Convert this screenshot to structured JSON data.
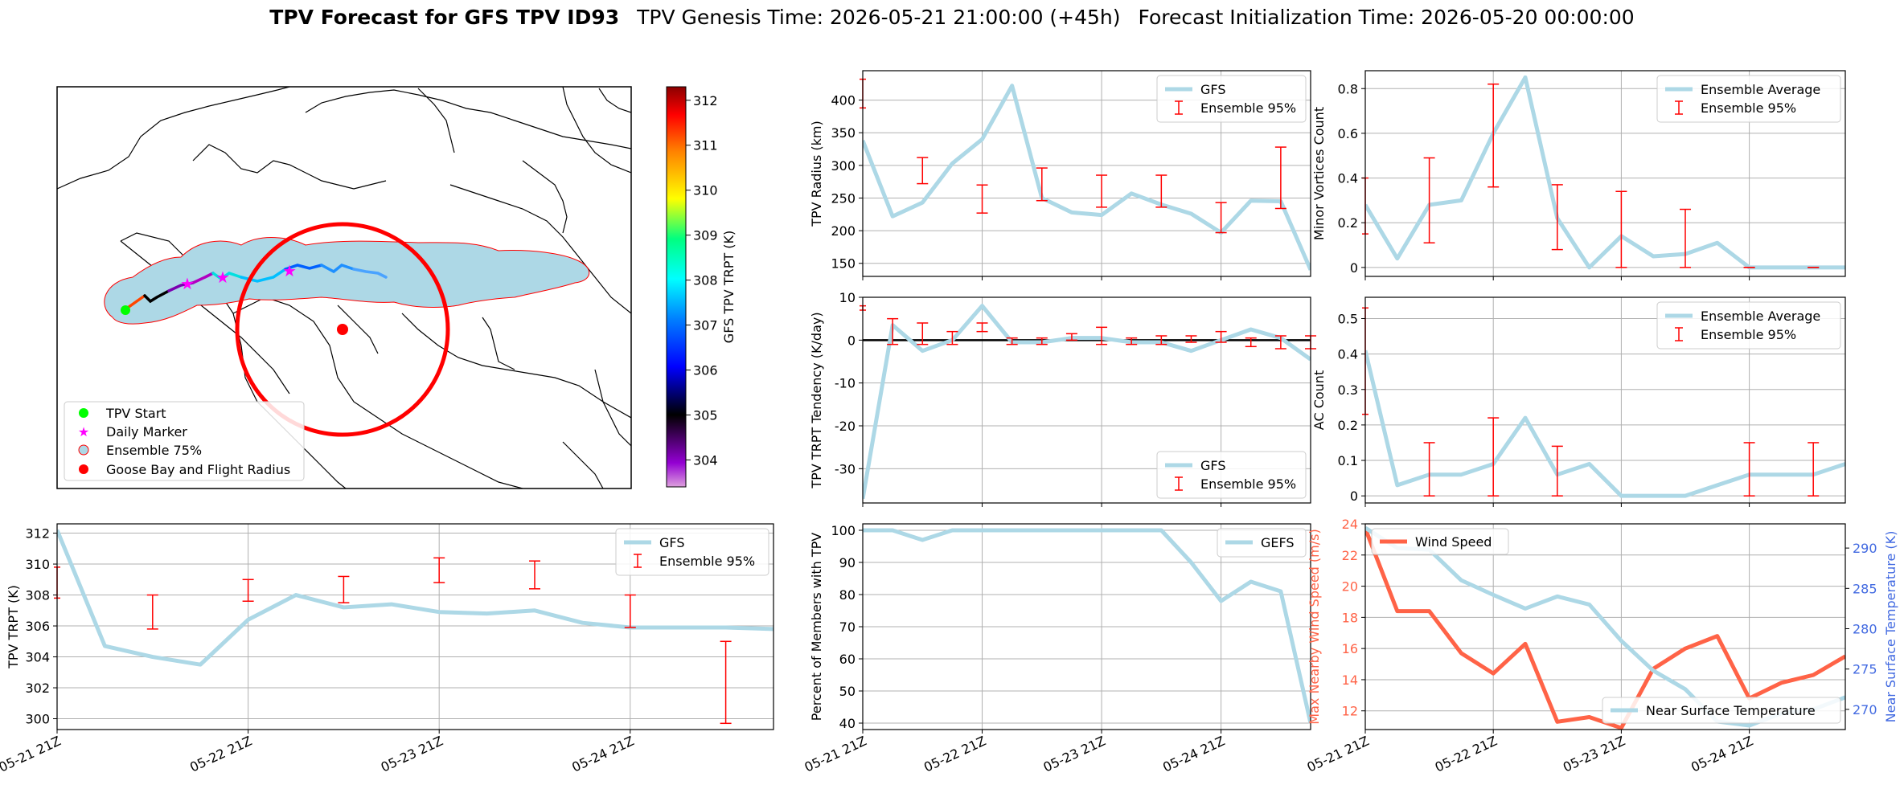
{
  "title": {
    "bold": "TPV Forecast for GFS TPV ID93",
    "genesis": "TPV Genesis Time: 2026-05-21 21:00:00 (+45h)",
    "init": "Forecast Initialization Time: 2026-05-20 00:00:00"
  },
  "colors": {
    "light_blue": "#add8e6",
    "red": "#ff0000",
    "tomato": "#ff6347",
    "royal_blue": "#4169e1",
    "lime": "#00ff00",
    "magenta": "#ff00ff",
    "grid": "#b0b0b0"
  },
  "map": {
    "legend": [
      "TPV Start",
      "Daily Marker",
      "Ensemble 75%",
      "Goose Bay and Flight Radius"
    ],
    "colorbar_label": "GFS TPV TRPT (K)",
    "colorbar_ticks": [
      "304",
      "305",
      "306",
      "307",
      "308",
      "309",
      "310",
      "311",
      "312"
    ]
  },
  "time_axis": {
    "tick_labels": [
      "05-21 21Z",
      "05-22 21Z",
      "05-23 21Z",
      "05-24 21Z"
    ]
  },
  "chart_data": [
    {
      "id": "radius",
      "type": "line",
      "ylabel": "TPV Radius (km)",
      "ylim": [
        130,
        445
      ],
      "yticks": [
        150,
        200,
        250,
        300,
        350,
        400
      ],
      "grid": true,
      "legend_loc": "upper right",
      "legend": [
        "GFS",
        "Ensemble 95%"
      ],
      "x": [
        0,
        6,
        12,
        18,
        24,
        30,
        36,
        42,
        48,
        54,
        60,
        66,
        72,
        78,
        84,
        90
      ],
      "series": [
        {
          "name": "GFS",
          "values": [
            338,
            222,
            243,
            303,
            340,
            422,
            250,
            228,
            224,
            257,
            240,
            226,
            197,
            246,
            245,
            140
          ]
        }
      ],
      "errorbars": [
        {
          "x": 0,
          "low": 388,
          "high": 432
        },
        {
          "x": 12,
          "low": 272,
          "high": 312
        },
        {
          "x": 24,
          "low": 227,
          "high": 270
        },
        {
          "x": 36,
          "low": 246,
          "high": 296
        },
        {
          "x": 48,
          "low": 236,
          "high": 285
        },
        {
          "x": 60,
          "low": 236,
          "high": 285
        },
        {
          "x": 72,
          "low": 197,
          "high": 243
        },
        {
          "x": 84,
          "low": 234,
          "high": 328
        }
      ]
    },
    {
      "id": "tendency",
      "type": "line",
      "ylabel": "TPV TRPT Tendency (K/day)",
      "ylim": [
        -38,
        10
      ],
      "yticks": [
        -30,
        -20,
        -10,
        0,
        10
      ],
      "grid": true,
      "legend_loc": "lower right",
      "legend": [
        "GFS",
        "Ensemble 95%"
      ],
      "zero_line": true,
      "x": [
        0,
        6,
        12,
        18,
        24,
        30,
        36,
        42,
        48,
        54,
        60,
        66,
        72,
        78,
        84,
        90
      ],
      "series": [
        {
          "name": "GFS",
          "values": [
            -37,
            3.5,
            -2.5,
            0,
            8,
            -0.5,
            -0.5,
            0.5,
            0.5,
            -0.5,
            -0.5,
            -2.5,
            0,
            2.5,
            0.5,
            -4.5
          ]
        }
      ],
      "errorbars": [
        {
          "x": 0,
          "low": 7,
          "high": 8
        },
        {
          "x": 6,
          "low": -1,
          "high": 5
        },
        {
          "x": 12,
          "low": -1,
          "high": 4
        },
        {
          "x": 18,
          "low": -1,
          "high": 2
        },
        {
          "x": 24,
          "low": 2,
          "high": 4
        },
        {
          "x": 30,
          "low": -1,
          "high": 0.5
        },
        {
          "x": 36,
          "low": -1,
          "high": 0.5
        },
        {
          "x": 42,
          "low": 0,
          "high": 1.5
        },
        {
          "x": 48,
          "low": -1,
          "high": 3
        },
        {
          "x": 54,
          "low": -1,
          "high": 0.5
        },
        {
          "x": 60,
          "low": -1,
          "high": 1
        },
        {
          "x": 66,
          "low": -0.5,
          "high": 1
        },
        {
          "x": 72,
          "low": -0.5,
          "high": 2
        },
        {
          "x": 78,
          "low": -1.5,
          "high": 0.5
        },
        {
          "x": 84,
          "low": -2,
          "high": 1
        },
        {
          "x": 90,
          "low": -2,
          "high": 1
        }
      ]
    },
    {
      "id": "trpt",
      "type": "line",
      "ylabel": "TPV TRPT (K)",
      "ylim": [
        299.3,
        312.6
      ],
      "yticks": [
        300,
        302,
        304,
        306,
        308,
        310,
        312
      ],
      "grid": true,
      "legend_loc": "upper right",
      "legend": [
        "GFS",
        "Ensemble 95%"
      ],
      "x": [
        0,
        6,
        12,
        18,
        24,
        30,
        36,
        42,
        48,
        54,
        60,
        66,
        72,
        78,
        84,
        90
      ],
      "series": [
        {
          "name": "GFS",
          "values": [
            312.2,
            304.7,
            304.0,
            303.5,
            306.4,
            308.0,
            307.2,
            307.4,
            306.9,
            306.8,
            307.0,
            306.2,
            305.9,
            305.9,
            305.9,
            305.8
          ]
        }
      ],
      "errorbars": [
        {
          "x": 0,
          "low": 307.8,
          "high": 309.8
        },
        {
          "x": 12,
          "low": 305.8,
          "high": 308.0
        },
        {
          "x": 24,
          "low": 307.6,
          "high": 309.0
        },
        {
          "x": 36,
          "low": 307.5,
          "high": 309.2
        },
        {
          "x": 48,
          "low": 308.8,
          "high": 310.4
        },
        {
          "x": 60,
          "low": 308.4,
          "high": 310.2
        },
        {
          "x": 72,
          "low": 305.9,
          "high": 308.0
        },
        {
          "x": 84,
          "low": 299.7,
          "high": 305.0
        }
      ]
    },
    {
      "id": "minor",
      "type": "line",
      "ylabel": "Minor Vortices Count",
      "ylim": [
        -0.04,
        0.88
      ],
      "yticks": [
        0.0,
        0.2,
        0.4,
        0.6,
        0.8
      ],
      "grid": true,
      "legend_loc": "upper right",
      "legend": [
        "Ensemble Average",
        "Ensemble 95%"
      ],
      "x": [
        0,
        6,
        12,
        18,
        24,
        30,
        36,
        42,
        48,
        54,
        60,
        66,
        72,
        78,
        84,
        90
      ],
      "series": [
        {
          "name": "Ensemble Average",
          "values": [
            0.28,
            0.04,
            0.28,
            0.3,
            0.6,
            0.85,
            0.22,
            0.0,
            0.14,
            0.05,
            0.06,
            0.11,
            0.0,
            0.0,
            0.0,
            0.0
          ]
        }
      ],
      "errorbars": [
        {
          "x": 0,
          "low": 0.15,
          "high": 0.4
        },
        {
          "x": 12,
          "low": 0.11,
          "high": 0.49
        },
        {
          "x": 24,
          "low": 0.36,
          "high": 0.82
        },
        {
          "x": 36,
          "low": 0.08,
          "high": 0.37
        },
        {
          "x": 48,
          "low": 0.0,
          "high": 0.34
        },
        {
          "x": 60,
          "low": 0.0,
          "high": 0.26
        },
        {
          "x": 72,
          "low": 0.0,
          "high": 0.0
        },
        {
          "x": 84,
          "low": 0.0,
          "high": 0.0
        }
      ]
    },
    {
      "id": "ac",
      "type": "line",
      "ylabel": "AC Count",
      "ylim": [
        -0.02,
        0.56
      ],
      "yticks": [
        0.0,
        0.1,
        0.2,
        0.3,
        0.4,
        0.5
      ],
      "grid": true,
      "legend_loc": "upper right",
      "legend": [
        "Ensemble Average",
        "Ensemble 95%"
      ],
      "x": [
        0,
        6,
        12,
        18,
        24,
        30,
        36,
        42,
        48,
        54,
        60,
        66,
        72,
        78,
        84,
        90
      ],
      "series": [
        {
          "name": "Ensemble Average",
          "values": [
            0.41,
            0.03,
            0.06,
            0.06,
            0.09,
            0.22,
            0.06,
            0.09,
            0.0,
            0.0,
            0.0,
            0.03,
            0.06,
            0.06,
            0.06,
            0.09
          ]
        }
      ],
      "errorbars": [
        {
          "x": 0,
          "low": 0.23,
          "high": 0.53
        },
        {
          "x": 12,
          "low": 0.0,
          "high": 0.15
        },
        {
          "x": 24,
          "low": 0.0,
          "high": 0.22
        },
        {
          "x": 36,
          "low": 0.0,
          "high": 0.14
        },
        {
          "x": 72,
          "low": 0.0,
          "high": 0.15
        },
        {
          "x": 84,
          "low": 0.0,
          "high": 0.15
        }
      ]
    },
    {
      "id": "percent",
      "type": "line",
      "ylabel": "Percent of Members with TPV",
      "ylim": [
        38,
        102
      ],
      "yticks": [
        40,
        50,
        60,
        70,
        80,
        90,
        100
      ],
      "grid": true,
      "legend_loc": "upper right",
      "legend": [
        "GEFS"
      ],
      "x": [
        0,
        6,
        12,
        18,
        24,
        30,
        36,
        42,
        48,
        54,
        60,
        66,
        72,
        78,
        84,
        90
      ],
      "series": [
        {
          "name": "GEFS",
          "values": [
            100,
            100,
            97,
            100,
            100,
            100,
            100,
            100,
            100,
            100,
            100,
            90,
            78,
            84,
            81,
            40
          ]
        }
      ]
    },
    {
      "id": "wind",
      "type": "line",
      "ylabel": "Max Nearby Wind Speed (m/s)",
      "ylabel_right": "Near Surface Temperature (K)",
      "ylim": [
        10.8,
        24
      ],
      "yticks": [
        12,
        14,
        16,
        18,
        20,
        22,
        24
      ],
      "ylim_right": [
        267.5,
        293
      ],
      "yticks_right": [
        270,
        275,
        280,
        285,
        290
      ],
      "grid": true,
      "legend": [
        "Wind Speed",
        "Near Surface Temperature"
      ],
      "x": [
        0,
        6,
        12,
        18,
        24,
        30,
        36,
        42,
        48,
        54,
        60,
        66,
        72,
        78,
        84,
        90
      ],
      "series": [
        {
          "name": "Wind Speed",
          "values": [
            23.7,
            18.4,
            18.4,
            15.7,
            14.4,
            16.3,
            11.3,
            11.6,
            10.9,
            14.7,
            16.0,
            16.8,
            12.8,
            13.8,
            14.3,
            15.5
          ]
        },
        {
          "name": "Near Surface Temperature",
          "values": [
            292.5,
            290,
            289.8,
            286,
            284.2,
            282.5,
            284,
            283,
            278.5,
            274.8,
            272.5,
            268.5,
            268,
            269.5,
            270,
            271.5
          ]
        }
      ]
    }
  ]
}
